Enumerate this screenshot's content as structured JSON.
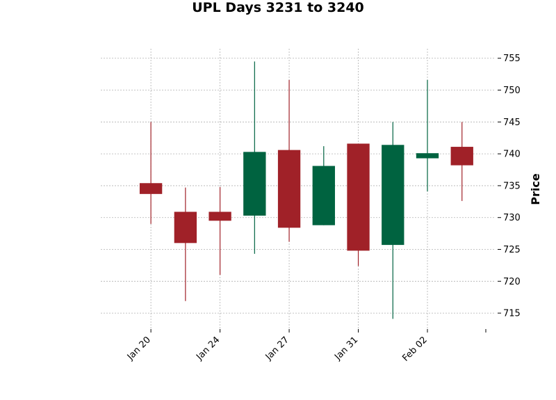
{
  "chart_data": {
    "type": "candlestick",
    "title": "UPL Days 3231 to 3240",
    "ylabel": "Price",
    "xlabel": "",
    "ylim": [
      712.5,
      756.5
    ],
    "yticks": [
      715,
      720,
      725,
      730,
      735,
      740,
      745,
      750,
      755
    ],
    "xlim": [
      -1.45,
      9.95
    ],
    "xticks": [
      {
        "pos": 0,
        "label": "Jan 20"
      },
      {
        "pos": 2,
        "label": "Jan 24"
      },
      {
        "pos": 4,
        "label": "Jan 27"
      },
      {
        "pos": 6,
        "label": "Jan 31"
      },
      {
        "pos": 8,
        "label": "Feb 02"
      },
      {
        "pos": 10,
        "label": ""
      }
    ],
    "grid": true,
    "up_color": "#006340",
    "down_color": "#a02128",
    "candles": [
      {
        "open": 735.4,
        "high": 745.0,
        "low": 729.0,
        "close": 733.7
      },
      {
        "open": 730.9,
        "high": 734.7,
        "low": 716.9,
        "close": 726.0
      },
      {
        "open": 730.9,
        "high": 734.8,
        "low": 721.0,
        "close": 729.5
      },
      {
        "open": 730.3,
        "high": 754.5,
        "low": 724.3,
        "close": 740.3
      },
      {
        "open": 740.6,
        "high": 751.6,
        "low": 726.2,
        "close": 728.4
      },
      {
        "open": 728.8,
        "high": 741.2,
        "low": 728.8,
        "close": 738.1
      },
      {
        "open": 741.6,
        "high": 741.6,
        "low": 722.4,
        "close": 724.8
      },
      {
        "open": 725.7,
        "high": 745.0,
        "low": 714.1,
        "close": 741.4
      },
      {
        "open": 739.3,
        "high": 751.6,
        "low": 734.1,
        "close": 740.1
      },
      {
        "open": 741.1,
        "high": 745.0,
        "low": 732.6,
        "close": 738.2
      }
    ]
  }
}
